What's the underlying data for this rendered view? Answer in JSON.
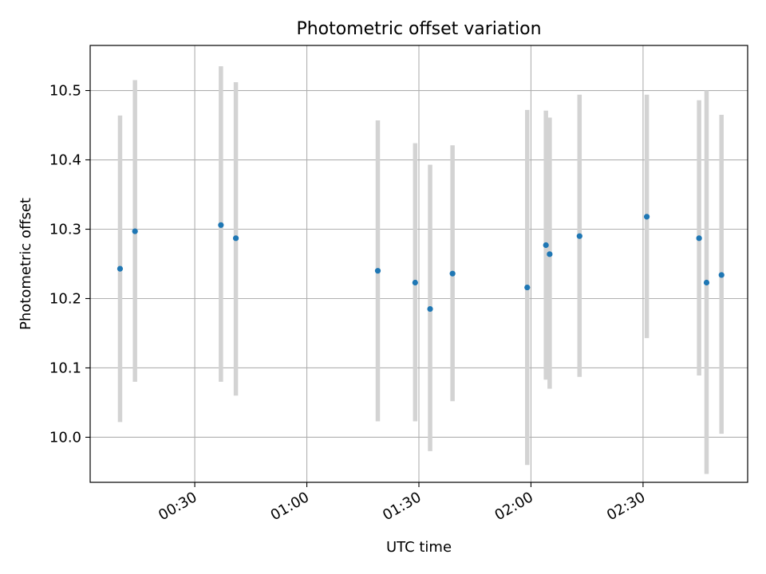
{
  "chart_data": {
    "type": "scatter",
    "title": "Photometric offset variation",
    "xlabel": "UTC time",
    "ylabel": "Photometric offset",
    "xlim": [
      "00:02",
      "02:58"
    ],
    "ylim": [
      9.935,
      10.565
    ],
    "xticks": [
      "00:30",
      "01:00",
      "01:30",
      "02:00",
      "02:30"
    ],
    "yticks": [
      10.0,
      10.1,
      10.2,
      10.3,
      10.4,
      10.5
    ],
    "grid": true,
    "errorbar_color": "#d3d3d3",
    "point_color": "#1f77b4",
    "points": [
      {
        "x": "00:10",
        "y": 10.243,
        "yerr": [
          10.022,
          10.464
        ]
      },
      {
        "x": "00:14",
        "y": 10.297,
        "yerr": [
          10.08,
          10.515
        ]
      },
      {
        "x": "00:37",
        "y": 10.306,
        "yerr": [
          10.08,
          10.535
        ]
      },
      {
        "x": "00:41",
        "y": 10.287,
        "yerr": [
          10.06,
          10.512
        ]
      },
      {
        "x": "01:19",
        "y": 10.24,
        "yerr": [
          10.023,
          10.457
        ]
      },
      {
        "x": "01:29",
        "y": 10.223,
        "yerr": [
          10.023,
          10.424
        ]
      },
      {
        "x": "01:33",
        "y": 10.185,
        "yerr": [
          9.98,
          10.393
        ]
      },
      {
        "x": "01:39",
        "y": 10.236,
        "yerr": [
          10.052,
          10.421
        ]
      },
      {
        "x": "01:59",
        "y": 10.216,
        "yerr": [
          9.96,
          10.472
        ]
      },
      {
        "x": "02:04",
        "y": 10.277,
        "yerr": [
          10.083,
          10.471
        ]
      },
      {
        "x": "02:05",
        "y": 10.264,
        "yerr": [
          10.07,
          10.461
        ]
      },
      {
        "x": "02:13",
        "y": 10.29,
        "yerr": [
          10.087,
          10.494
        ]
      },
      {
        "x": "02:31",
        "y": 10.318,
        "yerr": [
          10.143,
          10.494
        ]
      },
      {
        "x": "02:45",
        "y": 10.287,
        "yerr": [
          10.089,
          10.486
        ]
      },
      {
        "x": "02:47",
        "y": 10.223,
        "yerr": [
          9.947,
          10.5
        ]
      },
      {
        "x": "02:51",
        "y": 10.234,
        "yerr": [
          10.005,
          10.465
        ]
      }
    ]
  }
}
